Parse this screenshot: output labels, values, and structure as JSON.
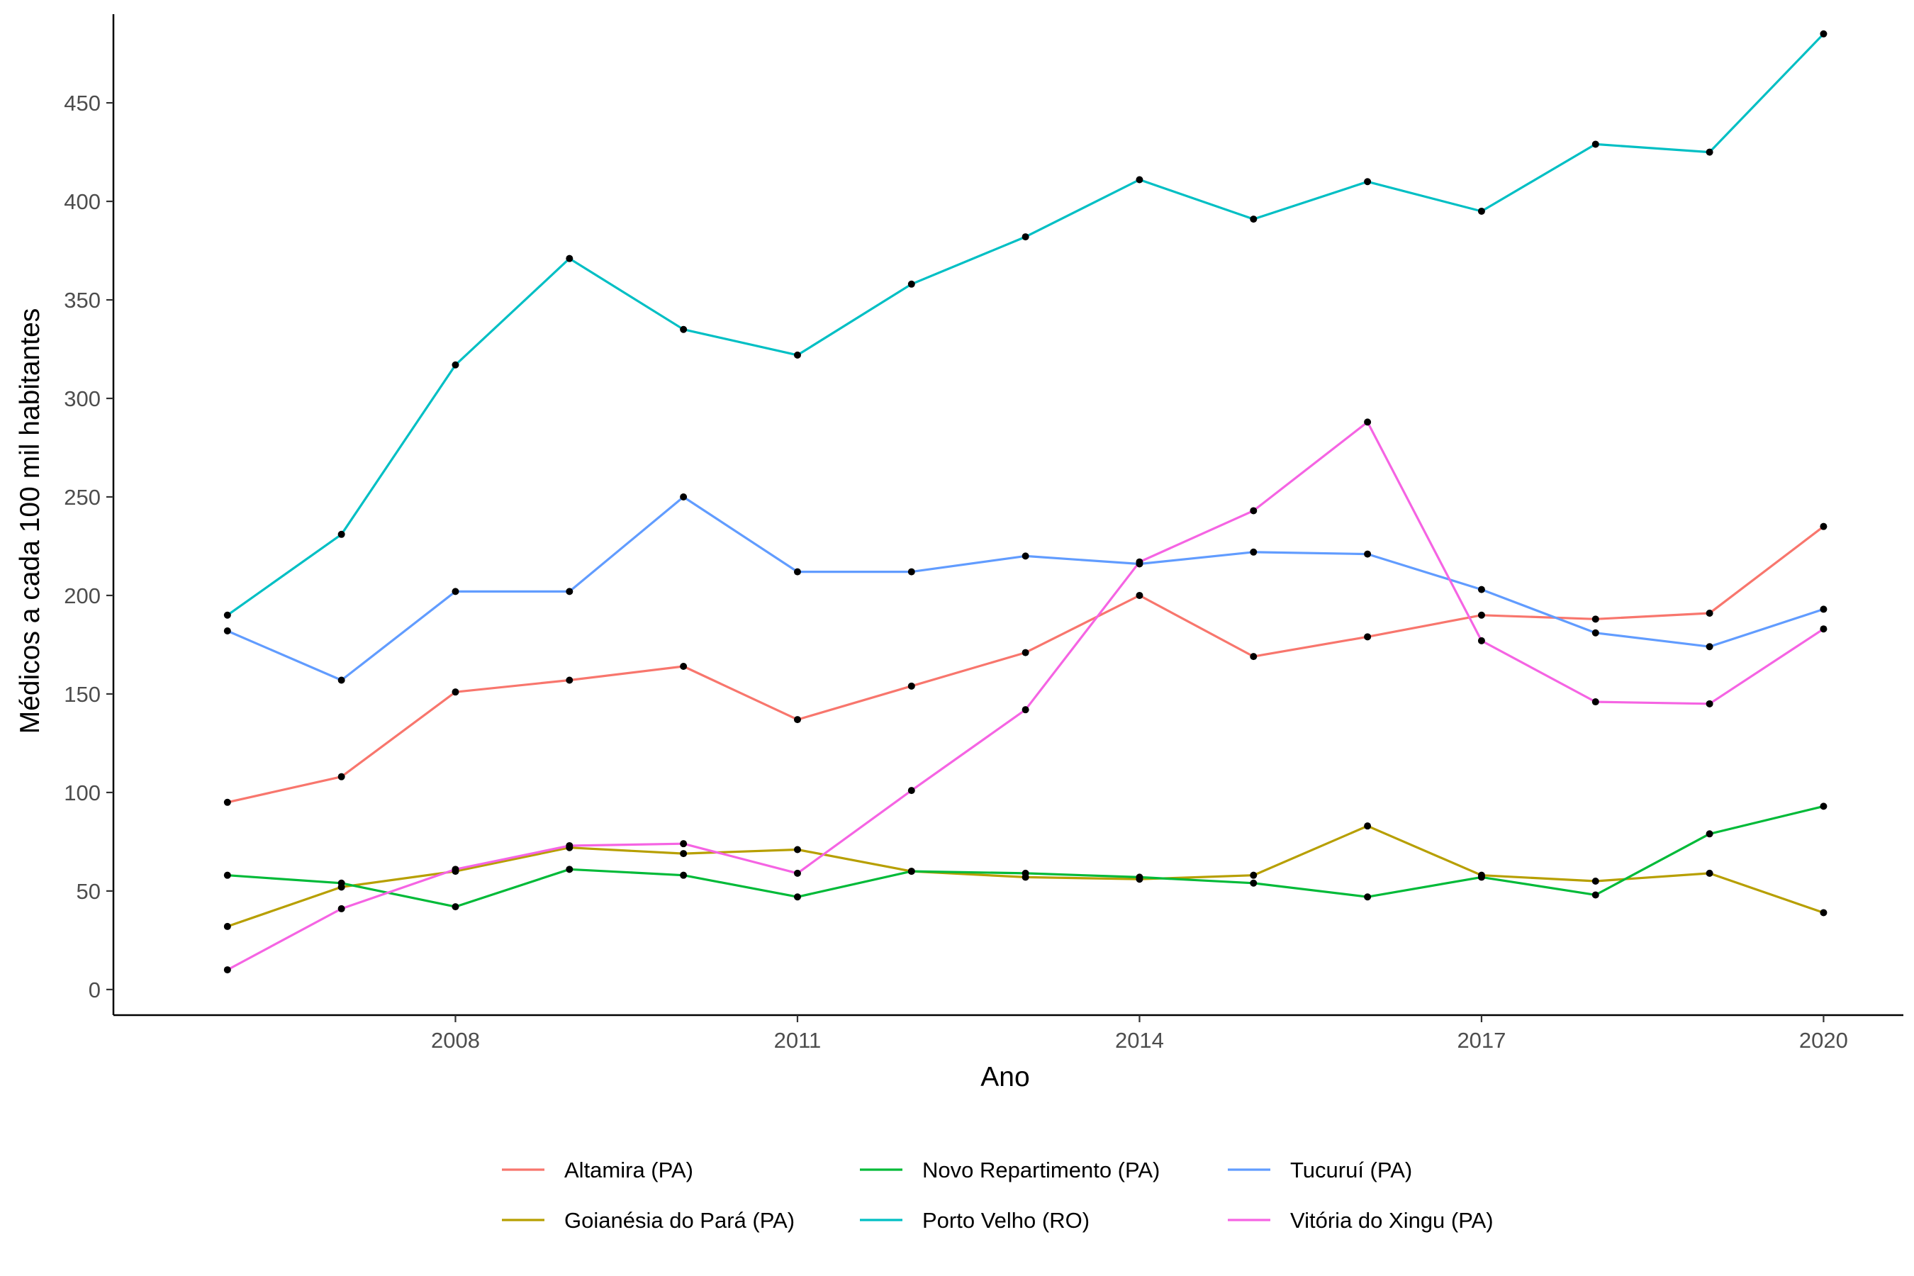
{
  "chart_data": {
    "type": "line",
    "xlabel": "Ano",
    "ylabel": "Médicos a cada 100 mil habitantes",
    "xlim": [
      2005,
      2020.7
    ],
    "ylim": [
      -13,
      495
    ],
    "x_ticks": [
      2008,
      2011,
      2014,
      2017,
      2020
    ],
    "y_ticks": [
      0,
      50,
      100,
      150,
      200,
      250,
      300,
      350,
      400,
      450
    ],
    "grid": false,
    "legend_position": "bottom",
    "x": [
      2006,
      2007,
      2008,
      2009,
      2010,
      2011,
      2012,
      2013,
      2014,
      2015,
      2016,
      2017,
      2018,
      2019,
      2020
    ],
    "series": [
      {
        "name": "Altamira (PA)",
        "color": "#F8766D",
        "values": [
          95,
          108,
          151,
          157,
          164,
          137,
          154,
          171,
          200,
          169,
          179,
          190,
          188,
          191,
          235
        ]
      },
      {
        "name": "Goianésia do Pará (PA)",
        "color": "#B79F00",
        "values": [
          32,
          52,
          60,
          72,
          69,
          71,
          60,
          57,
          56,
          58,
          83,
          58,
          55,
          59,
          39
        ]
      },
      {
        "name": "Novo Repartimento (PA)",
        "color": "#00BA38",
        "values": [
          58,
          54,
          42,
          61,
          58,
          47,
          60,
          59,
          57,
          54,
          47,
          57,
          48,
          79,
          93
        ]
      },
      {
        "name": "Porto Velho (RO)",
        "color": "#00BFC4",
        "values": [
          190,
          231,
          317,
          371,
          335,
          322,
          358,
          382,
          411,
          391,
          410,
          395,
          429,
          425,
          485
        ]
      },
      {
        "name": "Tucuruí (PA)",
        "color": "#619CFF",
        "values": [
          182,
          157,
          202,
          202,
          250,
          212,
          212,
          220,
          216,
          222,
          221,
          203,
          181,
          174,
          193
        ]
      },
      {
        "name": "Vitória do Xingu (PA)",
        "color": "#F564E3",
        "values": [
          10,
          41,
          61,
          73,
          74,
          59,
          101,
          142,
          217,
          243,
          288,
          177,
          146,
          145,
          183
        ]
      }
    ]
  }
}
